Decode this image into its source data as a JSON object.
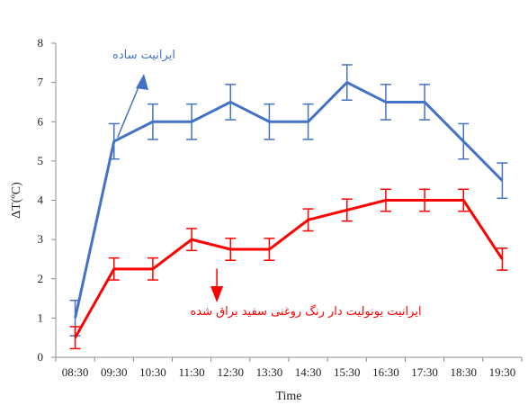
{
  "chart_data": {
    "type": "line",
    "title": "",
    "xlabel": "Time",
    "ylabel": "ΔT(ºC)",
    "ylim": [
      0,
      8
    ],
    "yticks": [
      0,
      1,
      2,
      3,
      4,
      5,
      6,
      7,
      8
    ],
    "grid": false,
    "legend": "none",
    "categories": [
      "08:30",
      "09:30",
      "10:30",
      "11:30",
      "12:30",
      "13:30",
      "14:30",
      "15:30",
      "16:30",
      "17:30",
      "18:30",
      "19:30"
    ],
    "series": [
      {
        "name": "ایرانیت ساده",
        "color": "#4472C4",
        "values": [
          1.0,
          5.5,
          6.0,
          6.0,
          6.5,
          6.0,
          6.0,
          7.0,
          6.5,
          6.5,
          5.5,
          4.5
        ],
        "error": 0.45
      },
      {
        "name": "ایرانیت یونولیت دار رنگ روغنی سفید براق شده",
        "color": "#FF0000",
        "values": [
          0.5,
          2.25,
          2.25,
          3.0,
          2.75,
          2.75,
          3.5,
          3.75,
          4.0,
          4.0,
          4.0,
          2.5
        ],
        "error": 0.28
      }
    ],
    "annotations": [
      {
        "text": "ایرانیت ساده",
        "color": "#4472C4",
        "arrow": "up",
        "points_to": {
          "x": "09:30",
          "y": 5.6
        }
      },
      {
        "text": "ایرانیت یونولیت دار رنگ روغنی سفید براق شده",
        "color": "#FF0000",
        "arrow": "down",
        "points_to": {
          "x": "11:30",
          "y": 2.9
        }
      }
    ]
  }
}
